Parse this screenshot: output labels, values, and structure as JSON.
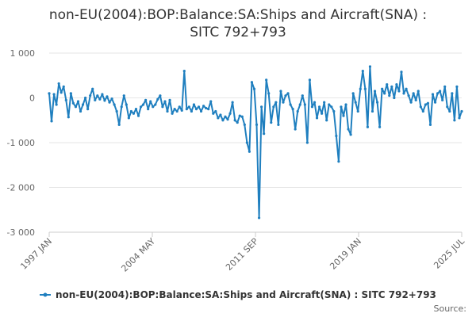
{
  "chart_data": {
    "type": "line",
    "title": "non-EU(2004):BOP:Balance:SA:Ships and Aircraft(SNA) : SITC 792+793",
    "title_lines": [
      "non-EU(2004):BOP:Balance:SA:Ships and Aircraft(SNA) :",
      "SITC 792+793"
    ],
    "ylim": [
      -3000,
      1000
    ],
    "y_ticks": [
      1000,
      0,
      -1000,
      -2000,
      -3000
    ],
    "y_tick_labels": [
      "1 000",
      "0",
      "-1 000",
      "-2 000",
      "-3 000"
    ],
    "x_tick_labels": [
      "1997 JAN",
      "2004 MAY",
      "2011 SEP",
      "2019 JAN",
      "2025 JUL"
    ],
    "x_range": [
      "1997-01",
      "2025-07"
    ],
    "legend": "bottom",
    "grid": "horizontal",
    "color": "#1f7fbf",
    "series": [
      {
        "name": "non-EU(2004):BOP:Balance:SA:Ships and Aircraft(SNA) : SITC 792+793",
        "points": [
          [
            "1997-01",
            100
          ],
          [
            "1997-03",
            -520
          ],
          [
            "1997-05",
            80
          ],
          [
            "1997-07",
            -150
          ],
          [
            "1997-09",
            320
          ],
          [
            "1997-11",
            120
          ],
          [
            "1998-01",
            250
          ],
          [
            "1998-03",
            -50
          ],
          [
            "1998-05",
            -430
          ],
          [
            "1998-07",
            100
          ],
          [
            "1998-09",
            -120
          ],
          [
            "1998-11",
            -200
          ],
          [
            "1999-01",
            -80
          ],
          [
            "1999-03",
            -300
          ],
          [
            "1999-05",
            -150
          ],
          [
            "1999-07",
            0
          ],
          [
            "1999-09",
            -250
          ],
          [
            "1999-11",
            50
          ],
          [
            "2000-01",
            200
          ],
          [
            "2000-03",
            -50
          ],
          [
            "2000-05",
            50
          ],
          [
            "2000-07",
            -30
          ],
          [
            "2000-09",
            80
          ],
          [
            "2000-11",
            -60
          ],
          [
            "2001-01",
            30
          ],
          [
            "2001-03",
            -100
          ],
          [
            "2001-05",
            -20
          ],
          [
            "2001-07",
            -150
          ],
          [
            "2001-09",
            -300
          ],
          [
            "2001-11",
            -600
          ],
          [
            "2002-01",
            -200
          ],
          [
            "2002-03",
            50
          ],
          [
            "2002-05",
            -150
          ],
          [
            "2002-07",
            -450
          ],
          [
            "2002-09",
            -300
          ],
          [
            "2002-11",
            -350
          ],
          [
            "2003-01",
            -250
          ],
          [
            "2003-03",
            -400
          ],
          [
            "2003-05",
            -200
          ],
          [
            "2003-07",
            -150
          ],
          [
            "2003-09",
            -50
          ],
          [
            "2003-11",
            -250
          ],
          [
            "2004-01",
            -80
          ],
          [
            "2004-03",
            -200
          ],
          [
            "2004-05",
            -150
          ],
          [
            "2004-07",
            -30
          ],
          [
            "2004-09",
            50
          ],
          [
            "2004-11",
            -200
          ],
          [
            "2005-01",
            -80
          ],
          [
            "2005-03",
            -300
          ],
          [
            "2005-05",
            -50
          ],
          [
            "2005-07",
            -350
          ],
          [
            "2005-09",
            -250
          ],
          [
            "2005-11",
            -300
          ],
          [
            "2006-01",
            -200
          ],
          [
            "2006-03",
            -280
          ],
          [
            "2006-05",
            600
          ],
          [
            "2006-07",
            -250
          ],
          [
            "2006-09",
            -200
          ],
          [
            "2006-11",
            -300
          ],
          [
            "2007-01",
            -150
          ],
          [
            "2007-03",
            -250
          ],
          [
            "2007-05",
            -200
          ],
          [
            "2007-07",
            -300
          ],
          [
            "2007-09",
            -180
          ],
          [
            "2007-11",
            -230
          ],
          [
            "2008-01",
            -250
          ],
          [
            "2008-03",
            -80
          ],
          [
            "2008-05",
            -350
          ],
          [
            "2008-07",
            -300
          ],
          [
            "2008-09",
            -450
          ],
          [
            "2008-11",
            -380
          ],
          [
            "2009-01",
            -500
          ],
          [
            "2009-03",
            -420
          ],
          [
            "2009-05",
            -480
          ],
          [
            "2009-07",
            -350
          ],
          [
            "2009-09",
            -100
          ],
          [
            "2009-11",
            -500
          ],
          [
            "2010-01",
            -550
          ],
          [
            "2010-03",
            -400
          ],
          [
            "2010-05",
            -420
          ],
          [
            "2010-07",
            -600
          ],
          [
            "2010-09",
            -1000
          ],
          [
            "2010-11",
            -1200
          ],
          [
            "2011-01",
            350
          ],
          [
            "2011-03",
            200
          ],
          [
            "2011-05",
            -600
          ],
          [
            "2011-07",
            -2680
          ],
          [
            "2011-09",
            -200
          ],
          [
            "2011-11",
            -800
          ],
          [
            "2012-01",
            400
          ],
          [
            "2012-03",
            100
          ],
          [
            "2012-05",
            -550
          ],
          [
            "2012-07",
            -200
          ],
          [
            "2012-09",
            -100
          ],
          [
            "2012-11",
            -600
          ],
          [
            "2013-01",
            150
          ],
          [
            "2013-03",
            -100
          ],
          [
            "2013-05",
            50
          ],
          [
            "2013-07",
            100
          ],
          [
            "2013-09",
            -150
          ],
          [
            "2013-11",
            -250
          ],
          [
            "2014-01",
            -700
          ],
          [
            "2014-03",
            -300
          ],
          [
            "2014-05",
            -150
          ],
          [
            "2014-07",
            50
          ],
          [
            "2014-09",
            -150
          ],
          [
            "2014-11",
            -1000
          ],
          [
            "2015-01",
            400
          ],
          [
            "2015-03",
            -200
          ],
          [
            "2015-05",
            -100
          ],
          [
            "2015-07",
            -450
          ],
          [
            "2015-09",
            -200
          ],
          [
            "2015-11",
            -350
          ],
          [
            "2016-01",
            -100
          ],
          [
            "2016-03",
            -500
          ],
          [
            "2016-05",
            -150
          ],
          [
            "2016-07",
            -200
          ],
          [
            "2016-09",
            -300
          ],
          [
            "2016-11",
            -850
          ],
          [
            "2017-01",
            -1420
          ],
          [
            "2017-03",
            -200
          ],
          [
            "2017-05",
            -400
          ],
          [
            "2017-07",
            -150
          ],
          [
            "2017-09",
            -700
          ],
          [
            "2017-11",
            -820
          ],
          [
            "2018-01",
            100
          ],
          [
            "2018-03",
            -100
          ],
          [
            "2018-05",
            -300
          ],
          [
            "2018-07",
            200
          ],
          [
            "2018-09",
            600
          ],
          [
            "2018-11",
            200
          ],
          [
            "2019-01",
            -650
          ],
          [
            "2019-03",
            700
          ],
          [
            "2019-05",
            -300
          ],
          [
            "2019-07",
            150
          ],
          [
            "2019-09",
            -100
          ],
          [
            "2019-11",
            -650
          ],
          [
            "2020-01",
            200
          ],
          [
            "2020-03",
            100
          ],
          [
            "2020-05",
            300
          ],
          [
            "2020-07",
            50
          ],
          [
            "2020-09",
            250
          ],
          [
            "2020-11",
            0
          ],
          [
            "2021-01",
            300
          ],
          [
            "2021-03",
            150
          ],
          [
            "2021-05",
            580
          ],
          [
            "2021-07",
            100
          ],
          [
            "2021-09",
            200
          ],
          [
            "2021-11",
            50
          ],
          [
            "2022-01",
            -100
          ],
          [
            "2022-03",
            100
          ],
          [
            "2022-05",
            -50
          ],
          [
            "2022-07",
            150
          ],
          [
            "2022-09",
            -200
          ],
          [
            "2022-11",
            -300
          ],
          [
            "2023-01",
            -150
          ],
          [
            "2023-03",
            -120
          ],
          [
            "2023-05",
            -600
          ],
          [
            "2023-07",
            80
          ],
          [
            "2023-09",
            -100
          ],
          [
            "2023-11",
            100
          ],
          [
            "2024-01",
            150
          ],
          [
            "2024-03",
            -50
          ],
          [
            "2024-05",
            250
          ],
          [
            "2024-07",
            -200
          ],
          [
            "2024-09",
            -300
          ],
          [
            "2024-11",
            100
          ],
          [
            "2025-01",
            -500
          ],
          [
            "2025-03",
            250
          ],
          [
            "2025-05",
            -450
          ],
          [
            "2025-07",
            -300
          ]
        ]
      }
    ]
  },
  "source_label": "Source:"
}
